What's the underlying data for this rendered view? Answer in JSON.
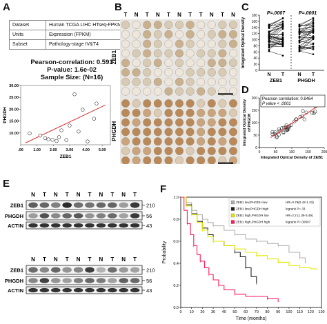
{
  "panel_labels": {
    "a": "A",
    "b": "B",
    "c": "C",
    "d": "D",
    "e": "E",
    "f": "F"
  },
  "panelA": {
    "table": [
      {
        "key": "Dataset",
        "value": "Human TCGA LIHC HTseq-FPKM"
      },
      {
        "key": "Units",
        "value": "Expression (FPKM)"
      },
      {
        "key": "Subset",
        "value": "Pathology-stage IV&T4"
      }
    ],
    "stats": [
      "Pearson-correlation: 0.591",
      "P-value: 1.6e-02",
      "Sample Size: (N=16)"
    ]
  },
  "panelB": {
    "header": [
      "T",
      "N",
      "T",
      "N",
      "T",
      "N",
      "T",
      "T",
      "N",
      "T",
      "N"
    ],
    "row_labels": {
      "top": "ZEB1",
      "bottom": "PHGDH"
    }
  },
  "panelC": {
    "pvalues": [
      "P=.0007",
      "P=.0001"
    ]
  },
  "panelD": {
    "legend_line1": "Pearson correlation: 0.8464",
    "legend_line2": "P value < .0001"
  },
  "panelE": {
    "header": [
      "N",
      "T",
      "N",
      "T",
      "N",
      "T",
      "N",
      "T",
      "N",
      "T"
    ],
    "rows": [
      "ZEB1",
      "PHGDH",
      "ACTIN"
    ],
    "kda": [
      "210",
      "56",
      "43"
    ]
  },
  "panelF": {
    "legend": [
      {
        "label": "ZEB1 low,PHGDH low",
        "stat": "HR=0.78(0.43-1.33)",
        "color": "#b0b0b0"
      },
      {
        "label": "ZEB1 low,PHGDH high",
        "stat": "logrank P=.33",
        "color": "#222222"
      },
      {
        "label": "ZEB1 high,PHGDH low",
        "stat": "HR=2.2 (1.39-3.49)",
        "color": "#e6e600"
      },
      {
        "label": "ZEB1 high,PHGDH high",
        "stat": "logrank P=.00007",
        "color": "#ff1a5c"
      }
    ]
  },
  "chart_data": [
    {
      "type": "scatter",
      "title": "",
      "xlabel": "ZEB1",
      "ylabel": "PHGDH",
      "xlim": [
        0,
        5.5
      ],
      "ylim": [
        5,
        30
      ],
      "xticks": [
        ".00",
        "1.00",
        "2.00",
        "3.00",
        "4.00",
        "5.00"
      ],
      "xtick_values": [
        0,
        1,
        2,
        3,
        4,
        5
      ],
      "yticks": [
        "10.00",
        "15.00",
        "20.00",
        "25.00",
        "30.00"
      ],
      "ytick_values": [
        10,
        15,
        20,
        25,
        30
      ],
      "points": [
        [
          0.55,
          9.8
        ],
        [
          1.2,
          8.9
        ],
        [
          1.5,
          7.8
        ],
        [
          1.7,
          7.3
        ],
        [
          1.95,
          7.1
        ],
        [
          2.2,
          6.6
        ],
        [
          2.35,
          8.2
        ],
        [
          2.5,
          11.1
        ],
        [
          2.8,
          7.0
        ],
        [
          3.0,
          13.1
        ],
        [
          3.3,
          26.3
        ],
        [
          3.55,
          10.6
        ],
        [
          3.8,
          19.8
        ],
        [
          4.1,
          6.4
        ],
        [
          4.5,
          16.0
        ],
        [
          4.65,
          22.4
        ]
      ],
      "fit": [
        [
          0.3,
          5.8
        ],
        [
          5.2,
          21.8
        ]
      ],
      "color": "#e03030"
    },
    {
      "type": "line",
      "ylabel": "Integrated Optical Density",
      "categories": [
        "N",
        "T",
        "N",
        "T"
      ],
      "group_labels": [
        "ZEB1",
        "PHGDH"
      ],
      "ylim": [
        0,
        180
      ],
      "yticks": [
        "0",
        "20",
        "40",
        "60",
        "80",
        "100",
        "120",
        "140",
        "160",
        "180"
      ],
      "ytick_values": [
        0,
        20,
        40,
        60,
        80,
        100,
        120,
        140,
        160,
        180
      ]
    },
    {
      "type": "scatter",
      "xlabel": "Integrated Optical Density of ZEB1",
      "ylabel": "Integrated Optical Density of PHGDH",
      "xlim": [
        0,
        200
      ],
      "ylim": [
        0,
        200
      ],
      "xticks": [
        "0",
        "50",
        "100",
        "150",
        "200"
      ],
      "yticks": [
        "0",
        "50",
        "100",
        "150",
        "200"
      ],
      "tick_values": [
        0,
        50,
        100,
        150,
        200
      ],
      "color": "#e03030"
    },
    {
      "type": "line",
      "xlabel": "Time (months)",
      "ylabel": "Probability",
      "xlim": [
        0,
        130
      ],
      "ylim": [
        0,
        1
      ],
      "xticks": [
        "0",
        "10",
        "20",
        "30",
        "40",
        "50",
        "60",
        "70",
        "80",
        "90",
        "100",
        "110",
        "120",
        "130"
      ],
      "xtick_values": [
        0,
        10,
        20,
        30,
        40,
        50,
        60,
        70,
        80,
        90,
        100,
        110,
        120,
        130
      ],
      "yticks": [
        "0.0",
        "0.2",
        "0.4",
        "0.6",
        "0.8",
        "1.0"
      ],
      "ytick_values": [
        0,
        0.2,
        0.4,
        0.6,
        0.8,
        1.0
      ],
      "series": [
        {
          "name": "ZEB1 low,PHGDH low",
          "color": "#b0b0b0",
          "points": [
            [
              0,
              1
            ],
            [
              5,
              0.95
            ],
            [
              10,
              0.88
            ],
            [
              15,
              0.84
            ],
            [
              20,
              0.8
            ],
            [
              25,
              0.77
            ],
            [
              30,
              0.74
            ],
            [
              40,
              0.7
            ],
            [
              50,
              0.66
            ],
            [
              60,
              0.62
            ],
            [
              70,
              0.6
            ],
            [
              80,
              0.58
            ],
            [
              90,
              0.56
            ],
            [
              100,
              0.5
            ],
            [
              110,
              0.45
            ],
            [
              115,
              0.4
            ]
          ]
        },
        {
          "name": "ZEB1 low,PHGDH high",
          "color": "#222222",
          "points": [
            [
              0,
              1
            ],
            [
              5,
              0.93
            ],
            [
              10,
              0.85
            ],
            [
              15,
              0.78
            ],
            [
              20,
              0.72
            ],
            [
              25,
              0.66
            ],
            [
              30,
              0.6
            ],
            [
              40,
              0.56
            ],
            [
              50,
              0.5
            ],
            [
              55,
              0.46
            ],
            [
              60,
              0.36
            ],
            [
              65,
              0.28
            ],
            [
              70,
              0.22
            ]
          ]
        },
        {
          "name": "ZEB1 high,PHGDH low",
          "color": "#e6e600",
          "points": [
            [
              0,
              1
            ],
            [
              5,
              0.92
            ],
            [
              10,
              0.84
            ],
            [
              15,
              0.77
            ],
            [
              20,
              0.7
            ],
            [
              25,
              0.64
            ],
            [
              30,
              0.6
            ],
            [
              40,
              0.56
            ],
            [
              50,
              0.53
            ],
            [
              60,
              0.5
            ],
            [
              70,
              0.47
            ],
            [
              80,
              0.44
            ],
            [
              90,
              0.41
            ],
            [
              100,
              0.38
            ],
            [
              110,
              0.36
            ],
            [
              120,
              0.35
            ],
            [
              125,
              0.35
            ]
          ]
        },
        {
          "name": "ZEB1 high,PHGDH high",
          "color": "#ff1a5c",
          "points": [
            [
              0,
              1
            ],
            [
              3,
              0.88
            ],
            [
              6,
              0.76
            ],
            [
              9,
              0.66
            ],
            [
              12,
              0.56
            ],
            [
              15,
              0.48
            ],
            [
              18,
              0.42
            ],
            [
              22,
              0.36
            ],
            [
              26,
              0.3
            ],
            [
              30,
              0.25
            ],
            [
              35,
              0.2
            ],
            [
              40,
              0.16
            ],
            [
              50,
              0.12
            ],
            [
              60,
              0.1
            ],
            [
              80,
              0.08
            ],
            [
              90,
              0.05
            ]
          ]
        }
      ]
    }
  ]
}
